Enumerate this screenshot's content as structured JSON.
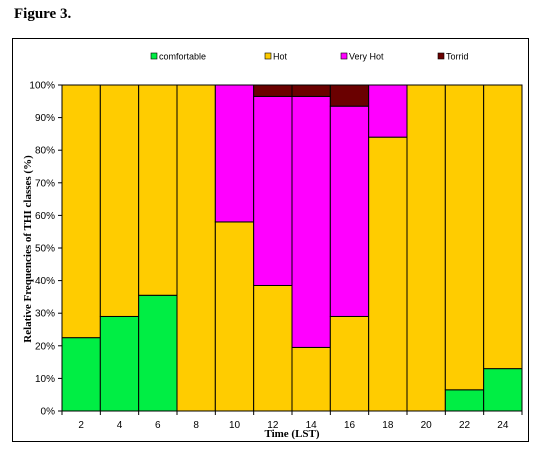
{
  "figure_label": "Figure 3.",
  "colors": {
    "comfortable": "#00ee44",
    "hot": "#ffcc00",
    "very_hot": "#ff00ff",
    "torrid": "#6a0000"
  },
  "chart_data": {
    "type": "bar",
    "stacked": true,
    "title": "",
    "xlabel": "Time (LST)",
    "ylabel": "Relative Frequencies of THI classes (%)",
    "ylim": [
      0,
      100
    ],
    "yticks": [
      "0%",
      "10%",
      "20%",
      "30%",
      "40%",
      "50%",
      "60%",
      "70%",
      "80%",
      "90%",
      "100%"
    ],
    "categories": [
      "2",
      "4",
      "6",
      "8",
      "10",
      "12",
      "14",
      "16",
      "18",
      "20",
      "22",
      "24"
    ],
    "legend_position": "top",
    "grid": false,
    "series": [
      {
        "name": "comfortable",
        "color": "#00ee44",
        "values": [
          22.5,
          29,
          35.5,
          0,
          0,
          0,
          0,
          0,
          0,
          0,
          6.5,
          13
        ]
      },
      {
        "name": "Hot",
        "color": "#ffcc00",
        "values": [
          77.5,
          71,
          64.5,
          100,
          58,
          38.5,
          19.5,
          29,
          84,
          100,
          93.5,
          87
        ]
      },
      {
        "name": "Very Hot",
        "color": "#ff00ff",
        "values": [
          0,
          0,
          0,
          0,
          42,
          58,
          77,
          64.5,
          16,
          0,
          0,
          0
        ]
      },
      {
        "name": "Torrid",
        "color": "#6a0000",
        "values": [
          0,
          0,
          0,
          0,
          0,
          3.5,
          3.5,
          6.5,
          0,
          0,
          0,
          0
        ]
      }
    ]
  }
}
